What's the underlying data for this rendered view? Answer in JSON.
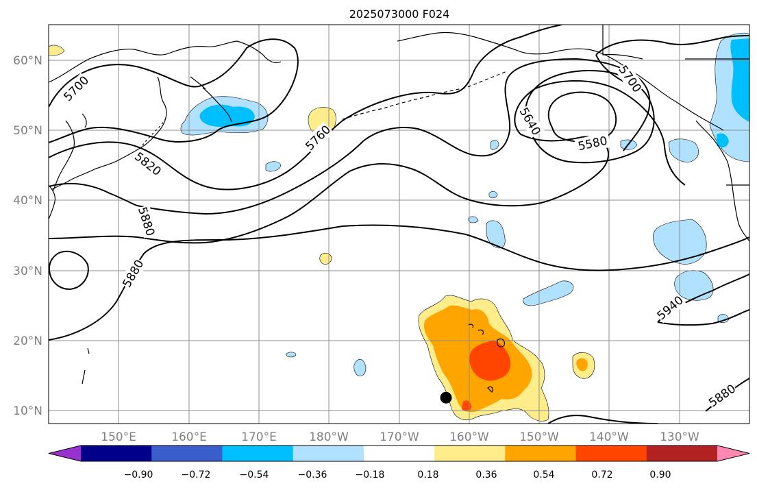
{
  "title": "2025073000 F024",
  "axes": {
    "lat_labels": [
      "10°N",
      "20°N",
      "30°N",
      "40°N",
      "50°N",
      "60°N"
    ],
    "lon_labels": [
      "150°E",
      "160°E",
      "170°E",
      "180°W",
      "170°W",
      "160°W",
      "150°W",
      "140°W",
      "130°W"
    ],
    "extent": {
      "lon_min": 140,
      "lon_max": 240,
      "lat_min": 8,
      "lat_max": 65
    }
  },
  "contours": {
    "labels": [
      "5700",
      "5820",
      "5880",
      "5880",
      "5760",
      "5640",
      "5580",
      "5700",
      "5940",
      "5880"
    ]
  },
  "colorbar": {
    "ticks": [
      "−0.90",
      "−0.72",
      "−0.54",
      "−0.36",
      "−0.18",
      "0.18",
      "0.36",
      "0.54",
      "0.72",
      "0.90"
    ],
    "colors": [
      "#9932cc",
      "#00008b",
      "#3a5fcd",
      "#00bfff",
      "#b0e2ff",
      "#ffffff",
      "#ffec8b",
      "#ffa500",
      "#ff4500",
      "#b22222",
      "#ff88b2"
    ]
  },
  "marker": {
    "lon": 196.7,
    "lat": 11.7
  }
}
